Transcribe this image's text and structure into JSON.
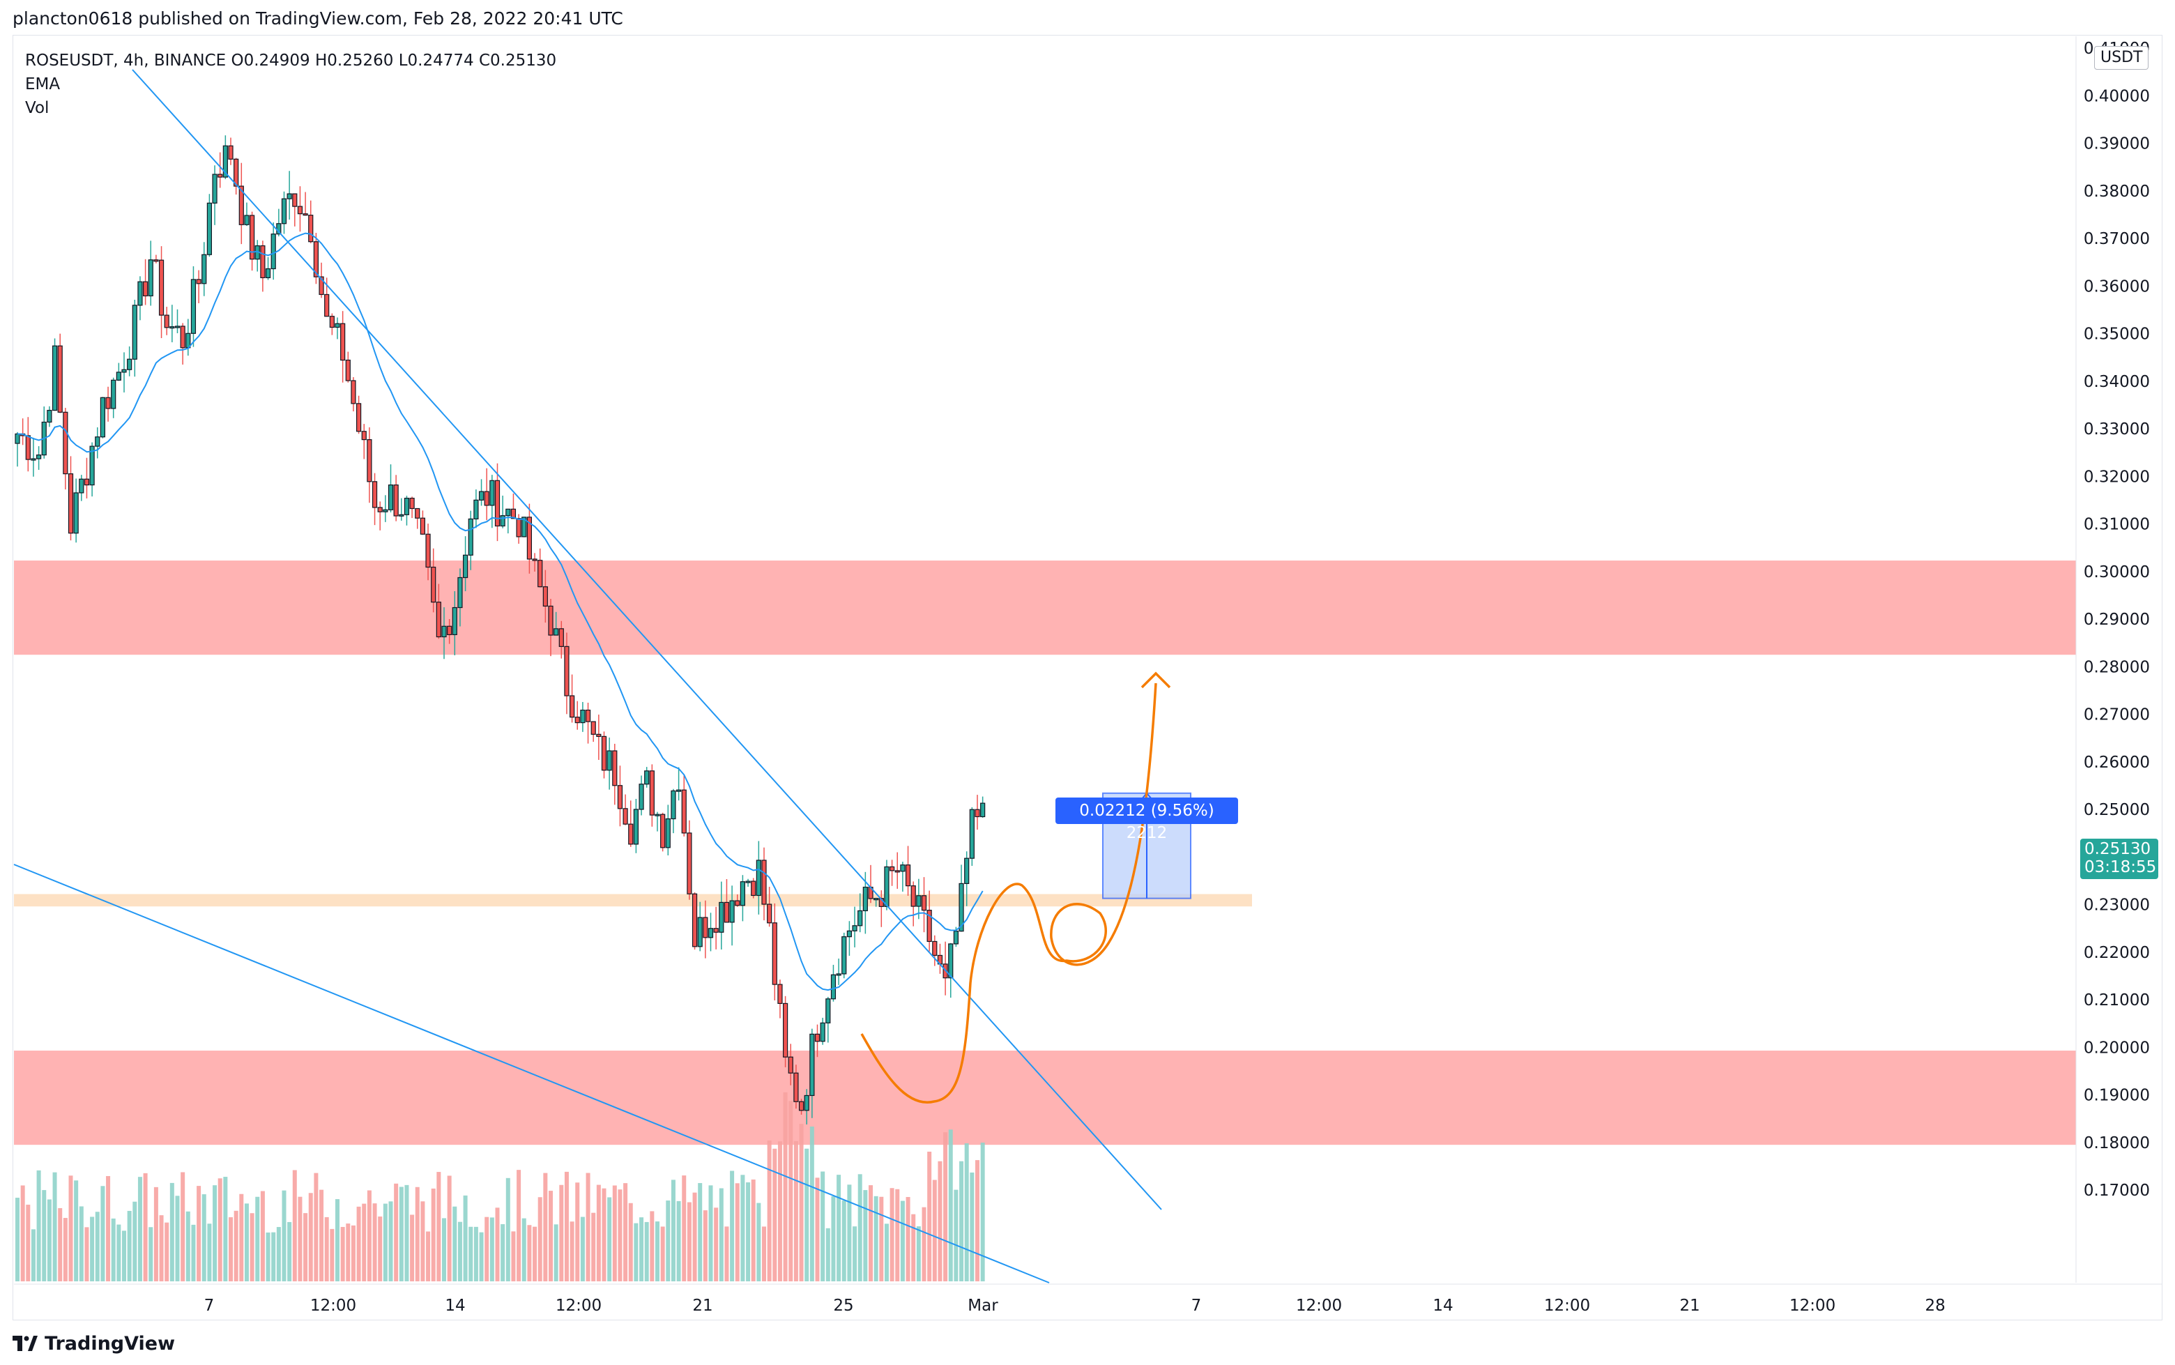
{
  "header": {
    "published_text": "plancton0618 published on TradingView.com, Feb 28, 2022 20:41 UTC"
  },
  "legend": {
    "symbol_line": "ROSEUSDT, 4h, BINANCE  O0.24909  H0.25260  L0.24774  C0.25130",
    "ema_label": "EMA",
    "vol_label": "Vol"
  },
  "price_scale": {
    "currency": "USDT",
    "ticks": [
      "0.17000",
      "0.18000",
      "0.19000",
      "0.20000",
      "0.21000",
      "0.22000",
      "0.23000",
      "0.24000",
      "0.25000",
      "0.26000",
      "0.27000",
      "0.28000",
      "0.29000",
      "0.30000",
      "0.31000",
      "0.32000",
      "0.33000",
      "0.34000",
      "0.35000",
      "0.36000",
      "0.37000",
      "0.38000",
      "0.39000",
      "0.40000",
      "0.41000"
    ]
  },
  "time_scale": {
    "ticks": [
      "7",
      "12:00",
      "14",
      "12:00",
      "21",
      "25",
      "Mar",
      "7",
      "12:00",
      "14",
      "12:00",
      "21",
      "12:00",
      "28"
    ]
  },
  "last_price": {
    "price": "0.25130",
    "countdown": "03:18:55"
  },
  "measure": {
    "label": "0.02212 (9.56%) 2212",
    "from": 0.2313,
    "to": 0.2534
  },
  "zones": [
    {
      "name": "resistance-zone",
      "from": 0.2825,
      "to": 0.3023,
      "color": "#ff9a9a"
    },
    {
      "name": "support-line-zone",
      "from": 0.2296,
      "to": 0.2322,
      "color": "#fcd7b0"
    },
    {
      "name": "demand-zone",
      "from": 0.1795,
      "to": 0.1993,
      "color": "#ff9a9a"
    }
  ],
  "footer": {
    "brand": "TradingView"
  },
  "colors": {
    "up": "#26a69a",
    "down": "#ef5350",
    "ema": "#2196f3",
    "trend": "#2196f3",
    "path": "#f57c00"
  },
  "chart_data": {
    "type": "candlestick",
    "title": "ROSEUSDT, 4h, BINANCE",
    "ylim": [
      0.161,
      0.419
    ],
    "x_axis_ticks": [
      "7",
      "12:00",
      "14",
      "12:00",
      "21",
      "25",
      "Mar",
      "7",
      "12:00",
      "14",
      "12:00",
      "21",
      "12:00",
      "28"
    ],
    "anchors_close": [
      [
        0,
        0.329
      ],
      [
        4,
        0.325
      ],
      [
        7,
        0.344
      ],
      [
        10,
        0.31
      ],
      [
        13,
        0.322
      ],
      [
        16,
        0.335
      ],
      [
        19,
        0.342
      ],
      [
        22,
        0.352
      ],
      [
        25,
        0.366
      ],
      [
        28,
        0.352
      ],
      [
        31,
        0.349
      ],
      [
        34,
        0.361
      ],
      [
        37,
        0.385
      ],
      [
        40,
        0.388
      ],
      [
        43,
        0.371
      ],
      [
        46,
        0.362
      ],
      [
        49,
        0.374
      ],
      [
        52,
        0.38
      ],
      [
        55,
        0.373
      ],
      [
        58,
        0.352
      ],
      [
        61,
        0.346
      ],
      [
        64,
        0.33
      ],
      [
        67,
        0.314
      ],
      [
        70,
        0.316
      ],
      [
        73,
        0.313
      ],
      [
        76,
        0.304
      ],
      [
        79,
        0.285
      ],
      [
        82,
        0.294
      ],
      [
        85,
        0.312
      ],
      [
        88,
        0.316
      ],
      [
        91,
        0.313
      ],
      [
        94,
        0.311
      ],
      [
        97,
        0.299
      ],
      [
        100,
        0.29
      ],
      [
        103,
        0.276
      ],
      [
        106,
        0.269
      ],
      [
        109,
        0.262
      ],
      [
        112,
        0.258
      ],
      [
        115,
        0.247
      ],
      [
        118,
        0.255
      ],
      [
        121,
        0.246
      ],
      [
        124,
        0.258
      ],
      [
        127,
        0.223
      ],
      [
        130,
        0.228
      ],
      [
        133,
        0.23
      ],
      [
        136,
        0.235
      ],
      [
        139,
        0.237
      ],
      [
        141,
        0.224
      ],
      [
        144,
        0.196
      ],
      [
        147,
        0.188
      ],
      [
        150,
        0.205
      ],
      [
        153,
        0.217
      ],
      [
        156,
        0.225
      ],
      [
        159,
        0.23
      ],
      [
        162,
        0.233
      ],
      [
        165,
        0.237
      ],
      [
        168,
        0.23
      ],
      [
        171,
        0.223
      ],
      [
        174,
        0.212
      ],
      [
        177,
        0.23
      ],
      [
        179,
        0.247
      ],
      [
        181,
        0.251
      ]
    ],
    "ema_note": "EMA computed from closes",
    "volume_note": "volume histogram at bottom, colored by candle direction",
    "annotations": [
      "descending trendline",
      "lower trendline",
      "projected orange path with target arrow",
      "measure box 0.02212 (9.56%)"
    ]
  }
}
